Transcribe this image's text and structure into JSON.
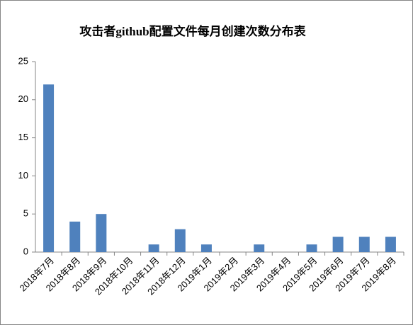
{
  "chart_data": {
    "type": "bar",
    "title": "攻击者github配置文件每月创建次数分布表",
    "categories": [
      "2018年7月",
      "2018年8月",
      "2018年9月",
      "2018年10月",
      "2018年11月",
      "2018年12月",
      "2019年1月",
      "2019年2月",
      "2019年3月",
      "2019年4月",
      "2019年5月",
      "2019年6月",
      "2019年7月",
      "2019年8月"
    ],
    "values": [
      22,
      4,
      5,
      0,
      1,
      3,
      1,
      0,
      1,
      0,
      1,
      2,
      2,
      2
    ],
    "color": "#4f81bd",
    "ylim": [
      0,
      25
    ],
    "yticks": [
      0,
      5,
      10,
      15,
      20,
      25
    ],
    "grid": false
  }
}
